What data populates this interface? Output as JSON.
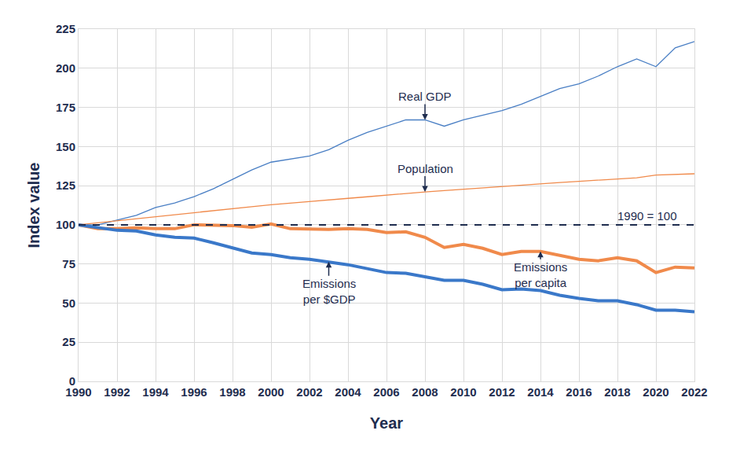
{
  "chart_data": {
    "type": "line",
    "x_label": "Year",
    "y_label": "Index value",
    "x": [
      1990,
      1991,
      1992,
      1993,
      1994,
      1995,
      1996,
      1997,
      1998,
      1999,
      2000,
      2001,
      2002,
      2003,
      2004,
      2005,
      2006,
      2007,
      2008,
      2009,
      2010,
      2011,
      2012,
      2013,
      2014,
      2015,
      2016,
      2017,
      2018,
      2019,
      2020,
      2021,
      2022
    ],
    "series": [
      {
        "name": "Real GDP",
        "color": "#4a7fc4",
        "values": [
          100,
          99.9,
          103,
          106,
          111,
          114,
          118,
          123,
          129,
          135,
          140,
          142,
          144,
          148,
          154,
          159,
          163,
          167,
          167,
          163,
          167,
          170,
          173,
          177,
          182,
          187,
          190,
          195,
          201,
          206,
          201,
          213,
          217
        ]
      },
      {
        "name": "Population",
        "color": "#f08a4b",
        "values": [
          100,
          101.3,
          102.7,
          104.1,
          105.4,
          106.7,
          107.9,
          109.2,
          110.4,
          111.6,
          112.8,
          113.9,
          114.9,
          115.9,
          116.9,
          117.9,
          119,
          120,
          121,
          121.9,
          122.8,
          123.6,
          124.5,
          125.3,
          126.1,
          127,
          127.8,
          128.6,
          129.3,
          130,
          131.8,
          132.2,
          132.6
        ]
      },
      {
        "name": "Emissions per capita",
        "color": "#f08a4b",
        "values": [
          100,
          97.5,
          97.5,
          98,
          97.5,
          97.5,
          100,
          99.5,
          99.5,
          98.5,
          100.5,
          97.5,
          97,
          97,
          97.5,
          97,
          95,
          95.5,
          92,
          85.5,
          87.5,
          85,
          81,
          83,
          83,
          80.5,
          78,
          77,
          79,
          77,
          69.5,
          73,
          72.5
        ]
      },
      {
        "name": "Emissions per $GDP",
        "color": "#3a78c9",
        "values": [
          100,
          98,
          96.5,
          96,
          93.5,
          92,
          91.5,
          88.5,
          85.5,
          82,
          81,
          79,
          78,
          76.5,
          74.5,
          72,
          69.5,
          69,
          67,
          64.5,
          64.5,
          62,
          58.5,
          59,
          58,
          55,
          53,
          51.5,
          51.5,
          49,
          45.5,
          45.5,
          44.5
        ]
      }
    ],
    "reference_line": {
      "y": 100,
      "label": "1990 = 100",
      "color": "#1f2d4f",
      "line_style": "dashed"
    },
    "xlim": [
      1990,
      2022
    ],
    "xticks": [
      1990,
      1992,
      1994,
      1996,
      1998,
      2000,
      2002,
      2004,
      2006,
      2008,
      2010,
      2012,
      2014,
      2016,
      2018,
      2020,
      2022
    ],
    "ylim": [
      0,
      225
    ],
    "yticks": [
      0,
      25,
      50,
      75,
      100,
      125,
      150,
      175,
      200,
      225
    ],
    "grid": true,
    "legend": "none"
  }
}
